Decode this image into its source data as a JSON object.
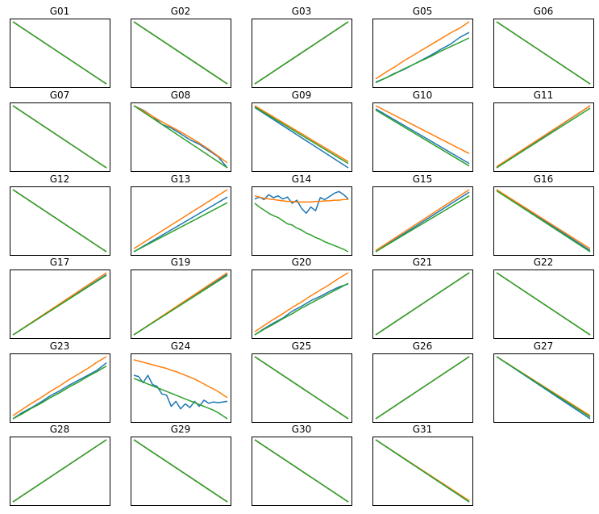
{
  "figure": {
    "series_colors": [
      "#1f77b4",
      "#ff7f0e",
      "#2ca02c"
    ],
    "ticks": "none"
  },
  "chart_data": [
    {
      "type": "line",
      "title": "G01",
      "x": [
        0,
        1
      ],
      "series": [
        {
          "values": [
            1,
            0
          ]
        },
        {
          "values": [
            1,
            0
          ]
        },
        {
          "values": [
            1,
            0
          ]
        }
      ]
    },
    {
      "type": "line",
      "title": "G02",
      "x": [
        0,
        1
      ],
      "series": [
        {
          "values": [
            1,
            0
          ]
        },
        {
          "values": [
            1,
            0
          ]
        },
        {
          "values": [
            1,
            0
          ]
        }
      ]
    },
    {
      "type": "line",
      "title": "G03",
      "x": [
        0,
        1
      ],
      "series": [
        {
          "values": [
            0,
            1
          ]
        },
        {
          "values": [
            0,
            1
          ]
        },
        {
          "values": [
            0,
            1
          ]
        }
      ]
    },
    {
      "type": "line",
      "title": "G05",
      "x": [
        0,
        0.1,
        0.2,
        0.3,
        0.4,
        0.5,
        0.6,
        0.7,
        0.8,
        0.9,
        1
      ],
      "series": [
        {
          "values": [
            0.03,
            0.09,
            0.17,
            0.23,
            0.31,
            0.39,
            0.47,
            0.56,
            0.64,
            0.75,
            0.83
          ]
        },
        {
          "values": [
            0.08,
            0.18,
            0.27,
            0.37,
            0.46,
            0.55,
            0.64,
            0.73,
            0.82,
            0.9,
            1.0
          ]
        },
        {
          "values": [
            0.02,
            0.09,
            0.16,
            0.24,
            0.31,
            0.38,
            0.45,
            0.53,
            0.6,
            0.67,
            0.74
          ]
        }
      ]
    },
    {
      "type": "line",
      "title": "G06",
      "x": [
        0,
        1
      ],
      "series": [
        {
          "values": [
            1,
            0
          ]
        },
        {
          "values": [
            1,
            0
          ]
        },
        {
          "values": [
            1,
            0
          ]
        }
      ]
    },
    {
      "type": "line",
      "title": "G07",
      "x": [
        0,
        1
      ],
      "series": [
        {
          "values": [
            1,
            0
          ]
        },
        {
          "values": [
            1,
            0
          ]
        },
        {
          "values": [
            1,
            0
          ]
        }
      ]
    },
    {
      "type": "line",
      "title": "G08",
      "x": [
        0,
        0.1,
        0.2,
        0.3,
        0.4,
        0.5,
        0.6,
        0.7,
        0.8,
        0.9,
        1
      ],
      "series": [
        {
          "values": [
            1.0,
            0.93,
            0.83,
            0.7,
            0.64,
            0.55,
            0.45,
            0.38,
            0.28,
            0.18,
            0.0
          ]
        },
        {
          "values": [
            1.0,
            0.92,
            0.83,
            0.74,
            0.66,
            0.58,
            0.49,
            0.4,
            0.3,
            0.19,
            0.08
          ]
        },
        {
          "values": [
            1.0,
            0.9,
            0.8,
            0.7,
            0.6,
            0.5,
            0.4,
            0.3,
            0.2,
            0.1,
            0.0
          ]
        }
      ]
    },
    {
      "type": "line",
      "title": "G09",
      "x": [
        0,
        1
      ],
      "series": [
        {
          "values": [
            0.97,
            0.0
          ]
        },
        {
          "values": [
            1.0,
            0.1
          ]
        },
        {
          "values": [
            0.98,
            0.07
          ]
        }
      ]
    },
    {
      "type": "line",
      "title": "G10",
      "x": [
        0,
        1
      ],
      "series": [
        {
          "values": [
            0.95,
            0.07
          ]
        },
        {
          "values": [
            1.0,
            0.23
          ]
        },
        {
          "values": [
            0.93,
            0.03
          ]
        }
      ]
    },
    {
      "type": "line",
      "title": "G11",
      "x": [
        0,
        1
      ],
      "series": [
        {
          "values": [
            0.0,
            1.0
          ]
        },
        {
          "values": [
            0.02,
            1.0
          ]
        },
        {
          "values": [
            0.0,
            0.96
          ]
        }
      ]
    },
    {
      "type": "line",
      "title": "G12",
      "x": [
        0,
        1
      ],
      "series": [
        {
          "values": [
            1,
            0
          ]
        },
        {
          "values": [
            1,
            0
          ]
        },
        {
          "values": [
            1,
            0
          ]
        }
      ]
    },
    {
      "type": "line",
      "title": "G13",
      "x": [
        0,
        1
      ],
      "series": [
        {
          "values": [
            0.0,
            0.88
          ]
        },
        {
          "values": [
            0.05,
            1.0
          ]
        },
        {
          "values": [
            0.0,
            0.79
          ]
        }
      ]
    },
    {
      "type": "line",
      "title": "G14",
      "x": [
        0,
        0.05,
        0.1,
        0.15,
        0.2,
        0.25,
        0.3,
        0.35,
        0.4,
        0.45,
        0.5,
        0.55,
        0.6,
        0.65,
        0.7,
        0.75,
        0.8,
        0.85,
        0.9,
        0.95,
        1
      ],
      "series": [
        {
          "values": [
            0.85,
            0.88,
            0.84,
            0.92,
            0.87,
            0.9,
            0.85,
            0.88,
            0.78,
            0.83,
            0.7,
            0.62,
            0.72,
            0.66,
            0.87,
            0.84,
            0.89,
            0.94,
            0.97,
            0.92,
            0.85
          ]
        },
        {
          "values": [
            0.9,
            0.88,
            0.86,
            0.85,
            0.84,
            0.83,
            0.82,
            0.81,
            0.81,
            0.8,
            0.8,
            0.8,
            0.8,
            0.81,
            0.81,
            0.82,
            0.82,
            0.83,
            0.83,
            0.84,
            0.84
          ]
        },
        {
          "values": [
            0.78,
            0.72,
            0.67,
            0.62,
            0.58,
            0.55,
            0.5,
            0.45,
            0.43,
            0.38,
            0.35,
            0.3,
            0.27,
            0.23,
            0.2,
            0.16,
            0.13,
            0.1,
            0.07,
            0.04,
            0.0
          ]
        }
      ]
    },
    {
      "type": "line",
      "title": "G15",
      "x": [
        0,
        1
      ],
      "series": [
        {
          "values": [
            0.0,
            0.96
          ]
        },
        {
          "values": [
            0.02,
            1.0
          ]
        },
        {
          "values": [
            0.0,
            0.9
          ]
        }
      ]
    },
    {
      "type": "line",
      "title": "G16",
      "x": [
        0,
        1
      ],
      "series": [
        {
          "values": [
            1.0,
            0.02
          ]
        },
        {
          "values": [
            1.0,
            0.05
          ]
        },
        {
          "values": [
            0.98,
            0.0
          ]
        }
      ]
    },
    {
      "type": "line",
      "title": "G17",
      "x": [
        0,
        1
      ],
      "series": [
        {
          "values": [
            0.0,
            0.97
          ]
        },
        {
          "values": [
            0.0,
            1.0
          ]
        },
        {
          "values": [
            0.0,
            0.96
          ]
        }
      ]
    },
    {
      "type": "line",
      "title": "G19",
      "x": [
        0,
        1
      ],
      "series": [
        {
          "values": [
            0.0,
            0.98
          ]
        },
        {
          "values": [
            0.0,
            1.0
          ]
        },
        {
          "values": [
            0.0,
            0.96
          ]
        }
      ]
    },
    {
      "type": "line",
      "title": "G20",
      "x": [
        0,
        0.1,
        0.2,
        0.3,
        0.4,
        0.5,
        0.6,
        0.7,
        0.8,
        0.9,
        1
      ],
      "series": [
        {
          "values": [
            0.0,
            0.1,
            0.19,
            0.27,
            0.38,
            0.46,
            0.55,
            0.62,
            0.7,
            0.77,
            0.82
          ]
        },
        {
          "values": [
            0.05,
            0.15,
            0.25,
            0.34,
            0.44,
            0.53,
            0.63,
            0.72,
            0.81,
            0.91,
            1.0
          ]
        },
        {
          "values": [
            0.0,
            0.09,
            0.17,
            0.26,
            0.34,
            0.43,
            0.51,
            0.59,
            0.67,
            0.75,
            0.83
          ]
        }
      ]
    },
    {
      "type": "line",
      "title": "G21",
      "x": [
        0,
        1
      ],
      "series": [
        {
          "values": [
            0,
            1
          ]
        },
        {
          "values": [
            0,
            1
          ]
        },
        {
          "values": [
            0,
            1
          ]
        }
      ]
    },
    {
      "type": "line",
      "title": "G22",
      "x": [
        0,
        1
      ],
      "series": [
        {
          "values": [
            1,
            0
          ]
        },
        {
          "values": [
            1,
            0
          ]
        },
        {
          "values": [
            1,
            0
          ]
        }
      ]
    },
    {
      "type": "line",
      "title": "G23",
      "x": [
        0,
        0.1,
        0.2,
        0.3,
        0.4,
        0.5,
        0.6,
        0.7,
        0.8,
        0.9,
        1
      ],
      "series": [
        {
          "values": [
            0.0,
            0.1,
            0.18,
            0.27,
            0.37,
            0.45,
            0.54,
            0.62,
            0.7,
            0.78,
            0.9
          ]
        },
        {
          "values": [
            0.05,
            0.15,
            0.25,
            0.34,
            0.44,
            0.53,
            0.63,
            0.72,
            0.81,
            0.91,
            1.0
          ]
        },
        {
          "values": [
            0.0,
            0.08,
            0.17,
            0.25,
            0.34,
            0.42,
            0.51,
            0.59,
            0.68,
            0.76,
            0.85
          ]
        }
      ]
    },
    {
      "type": "line",
      "title": "G24",
      "x": [
        0,
        0.05,
        0.1,
        0.15,
        0.2,
        0.25,
        0.3,
        0.35,
        0.4,
        0.45,
        0.5,
        0.55,
        0.6,
        0.65,
        0.7,
        0.75,
        0.8,
        0.85,
        0.9,
        0.95,
        1
      ],
      "series": [
        {
          "values": [
            0.7,
            0.68,
            0.58,
            0.7,
            0.55,
            0.52,
            0.4,
            0.38,
            0.2,
            0.28,
            0.16,
            0.24,
            0.18,
            0.28,
            0.2,
            0.3,
            0.25,
            0.27,
            0.26,
            0.27,
            0.28
          ]
        },
        {
          "values": [
            0.95,
            0.93,
            0.91,
            0.89,
            0.87,
            0.85,
            0.83,
            0.81,
            0.78,
            0.76,
            0.73,
            0.7,
            0.67,
            0.64,
            0.6,
            0.56,
            0.52,
            0.48,
            0.44,
            0.39,
            0.34
          ]
        },
        {
          "values": [
            0.65,
            0.62,
            0.59,
            0.56,
            0.53,
            0.5,
            0.47,
            0.44,
            0.41,
            0.38,
            0.35,
            0.32,
            0.29,
            0.26,
            0.23,
            0.2,
            0.17,
            0.14,
            0.1,
            0.05,
            0.0
          ]
        }
      ]
    },
    {
      "type": "line",
      "title": "G25",
      "x": [
        0,
        1
      ],
      "series": [
        {
          "values": [
            1,
            0
          ]
        },
        {
          "values": [
            1,
            0
          ]
        },
        {
          "values": [
            1,
            0
          ]
        }
      ]
    },
    {
      "type": "line",
      "title": "G26",
      "x": [
        0,
        1
      ],
      "series": [
        {
          "values": [
            0,
            1
          ]
        },
        {
          "values": [
            0,
            1
          ]
        },
        {
          "values": [
            0,
            1
          ]
        }
      ]
    },
    {
      "type": "line",
      "title": "G27",
      "x": [
        0,
        1
      ],
      "series": [
        {
          "values": [
            1.0,
            0.0
          ]
        },
        {
          "values": [
            1.0,
            0.05
          ]
        },
        {
          "values": [
            1.0,
            0.03
          ]
        }
      ]
    },
    {
      "type": "line",
      "title": "G28",
      "x": [
        0,
        1
      ],
      "series": [
        {
          "values": [
            0,
            1
          ]
        },
        {
          "values": [
            0,
            1
          ]
        },
        {
          "values": [
            0,
            1
          ]
        }
      ]
    },
    {
      "type": "line",
      "title": "G29",
      "x": [
        0,
        1
      ],
      "series": [
        {
          "values": [
            1,
            0
          ]
        },
        {
          "values": [
            1,
            0
          ]
        },
        {
          "values": [
            1,
            0
          ]
        }
      ]
    },
    {
      "type": "line",
      "title": "G30",
      "x": [
        0,
        1
      ],
      "series": [
        {
          "values": [
            1,
            0
          ]
        },
        {
          "values": [
            1,
            0
          ]
        },
        {
          "values": [
            1,
            0
          ]
        }
      ]
    },
    {
      "type": "line",
      "title": "G31",
      "x": [
        0,
        1
      ],
      "series": [
        {
          "values": [
            1.0,
            0.0
          ]
        },
        {
          "values": [
            1.0,
            0.02
          ]
        },
        {
          "values": [
            1.0,
            0.0
          ]
        }
      ]
    }
  ]
}
